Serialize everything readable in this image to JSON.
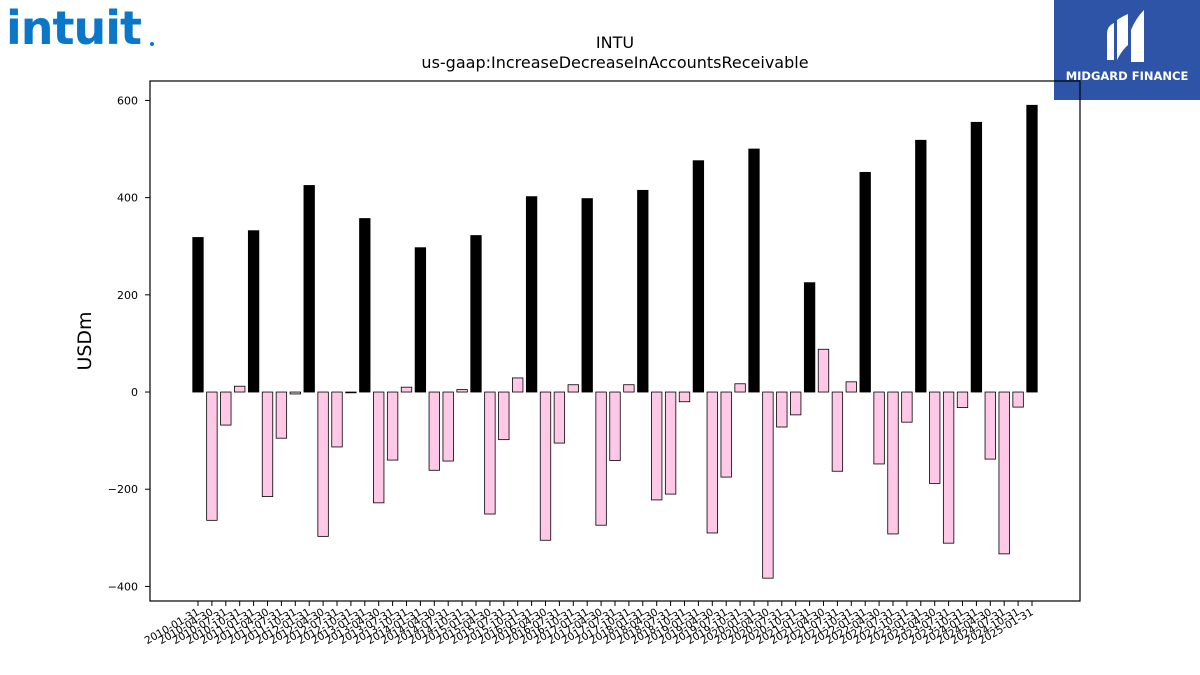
{
  "brand": {
    "left_logo_text": "intuit",
    "left_logo_color": "#0a77c9",
    "right_logo_text": "MIDGARD FINANCE",
    "right_logo_bg": "#2e54a8"
  },
  "chart_data": {
    "type": "bar",
    "title": "INTU",
    "subtitle": "us-gaap:IncreaseDecreaseInAccountsReceivable",
    "xlabel": "",
    "ylabel": "USDm",
    "ylim": [
      -430,
      640
    ],
    "yticks": [
      -400,
      -200,
      0,
      200,
      400,
      600
    ],
    "grid": false,
    "colors": {
      "annual": "#000000",
      "quarterly": "#ffc8e6",
      "edge": "#000000"
    },
    "categories": [
      "2010-01-31",
      "2010-04-30",
      "2010-07-31",
      "2010-10-31",
      "2011-01-31",
      "2011-04-30",
      "2011-07-31",
      "2011-10-31",
      "2012-01-31",
      "2012-04-30",
      "2012-07-31",
      "2012-10-31",
      "2013-01-31",
      "2013-04-30",
      "2013-07-31",
      "2013-10-31",
      "2014-01-31",
      "2014-04-30",
      "2014-07-31",
      "2014-10-31",
      "2015-01-31",
      "2015-04-30",
      "2015-07-31",
      "2015-10-31",
      "2016-01-31",
      "2016-04-30",
      "2016-07-31",
      "2016-10-31",
      "2017-01-31",
      "2017-04-30",
      "2017-07-31",
      "2017-10-31",
      "2018-01-31",
      "2018-04-30",
      "2018-07-31",
      "2018-10-31",
      "2019-01-31",
      "2019-04-30",
      "2019-07-31",
      "2019-10-31",
      "2020-01-31",
      "2020-04-30",
      "2020-07-31",
      "2020-10-31",
      "2021-01-31",
      "2021-04-30",
      "2021-07-31",
      "2021-10-31",
      "2022-01-31",
      "2022-04-30",
      "2022-07-31",
      "2022-10-31",
      "2023-01-31",
      "2023-04-30",
      "2023-07-31",
      "2023-10-31",
      "2024-01-31",
      "2024-04-30",
      "2024-07-31",
      "2024-10-31",
      "2025-01-31"
    ],
    "values": [
      318,
      -264,
      -68,
      12,
      332,
      -215,
      -95,
      -4,
      425,
      -297,
      -113,
      0,
      357,
      -228,
      -140,
      10,
      297,
      -161,
      -142,
      5,
      322,
      -251,
      -98,
      29,
      402,
      -305,
      -105,
      15,
      398,
      -274,
      -141,
      15,
      415,
      -222,
      -210,
      -20,
      476,
      -290,
      -175,
      17,
      500,
      -383,
      -72,
      -47,
      225,
      88,
      -163,
      21,
      452,
      -148,
      -292,
      -62,
      518,
      -188,
      -311,
      -32,
      555,
      -138,
      -333,
      -31,
      590
    ],
    "kinds": [
      "annual",
      "quarterly",
      "quarterly",
      "quarterly",
      "annual",
      "quarterly",
      "quarterly",
      "quarterly",
      "annual",
      "quarterly",
      "quarterly",
      "quarterly",
      "annual",
      "quarterly",
      "quarterly",
      "quarterly",
      "annual",
      "quarterly",
      "quarterly",
      "quarterly",
      "annual",
      "quarterly",
      "quarterly",
      "quarterly",
      "annual",
      "quarterly",
      "quarterly",
      "quarterly",
      "annual",
      "quarterly",
      "quarterly",
      "quarterly",
      "annual",
      "quarterly",
      "quarterly",
      "quarterly",
      "annual",
      "quarterly",
      "quarterly",
      "quarterly",
      "annual",
      "quarterly",
      "quarterly",
      "quarterly",
      "annual",
      "quarterly",
      "quarterly",
      "quarterly",
      "annual",
      "quarterly",
      "quarterly",
      "quarterly",
      "annual",
      "quarterly",
      "quarterly",
      "quarterly",
      "annual",
      "quarterly",
      "quarterly",
      "quarterly",
      "annual"
    ]
  }
}
